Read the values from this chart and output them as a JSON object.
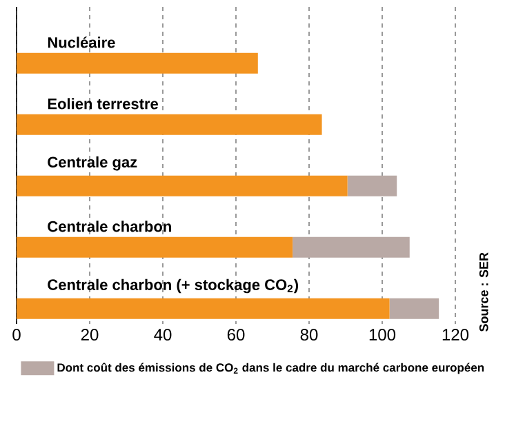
{
  "chart_data": {
    "type": "bar",
    "orientation": "horizontal",
    "stacked": true,
    "categories": [
      "Nucléaire",
      "Eolien terrestre",
      "Centrale gaz",
      "Centrale charbon",
      "Centrale charbon (+ stockage CO$_{2}$)"
    ],
    "series": [
      {
        "color": "#f39420",
        "values": [
          66,
          83.5,
          90.5,
          75.5,
          102
        ]
      },
      {
        "name": "Dont coût des émissions de CO$_{2}$ dans le cadre du marché carbone européen",
        "color": "#b9a9a5",
        "values": [
          0,
          0,
          13.5,
          32,
          13.5
        ]
      }
    ],
    "xlim": [
      0,
      120
    ],
    "xticks": [
      0,
      20,
      40,
      60,
      80,
      100,
      120
    ],
    "grid": "x",
    "legend": "bottom",
    "annotations": [
      "Source : SER"
    ]
  }
}
